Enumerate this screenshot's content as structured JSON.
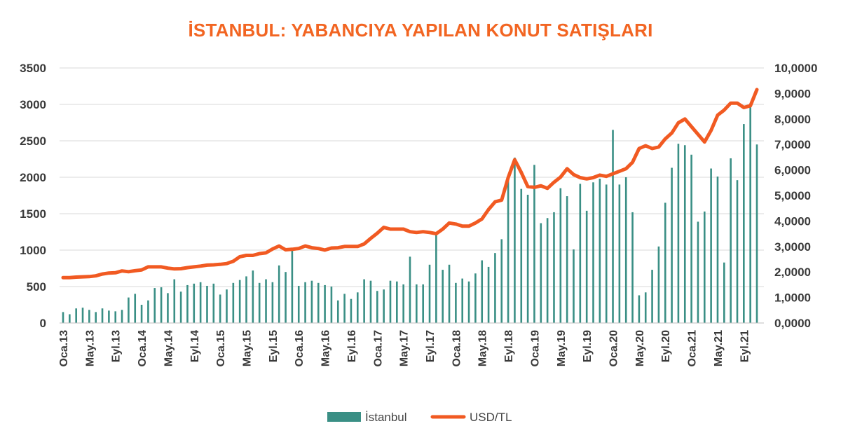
{
  "chart_data": {
    "type": "bar+line",
    "title": "İSTANBUL: YABANCIYA YAPILAN KONUT SATIŞLARI",
    "x_tick_labels": [
      "Oca.13",
      "May.13",
      "Eyl.13",
      "Oca.14",
      "May.14",
      "Eyl.14",
      "Oca.15",
      "May.15",
      "Eyl.15",
      "Oca.16",
      "May.16",
      "Eyl.16",
      "Oca.17",
      "May.17",
      "Eyl.17",
      "Oca.18",
      "May.18",
      "Eyl.18",
      "Oca.19",
      "May.19",
      "Eyl.19",
      "Oca.20",
      "May.20",
      "Eyl.20",
      "Oca.21",
      "May.21",
      "Eyl.21"
    ],
    "left_axis": {
      "ylim": [
        0,
        3500
      ],
      "ticks": [
        "0",
        "500",
        "1000",
        "1500",
        "2000",
        "2500",
        "3000",
        "3500"
      ]
    },
    "right_axis": {
      "ylim": [
        0,
        10
      ],
      "ticks": [
        "0,0000",
        "1,0000",
        "2,0000",
        "3,0000",
        "4,0000",
        "5,0000",
        "6,0000",
        "7,0000",
        "8,0000",
        "9,0000",
        "10,0000"
      ]
    },
    "grid": "horizontal",
    "legend_position": "bottom",
    "colors": {
      "bars": "#3a8f85",
      "line": "#f15a22",
      "title": "#f26522"
    },
    "series": [
      {
        "name": "İstanbul",
        "kind": "bar",
        "axis": "left",
        "values": [
          150,
          120,
          200,
          210,
          180,
          150,
          200,
          170,
          160,
          180,
          350,
          400,
          250,
          310,
          480,
          490,
          410,
          600,
          430,
          520,
          540,
          560,
          510,
          540,
          390,
          460,
          550,
          590,
          640,
          720,
          550,
          600,
          560,
          790,
          700,
          1000,
          510,
          560,
          580,
          550,
          520,
          500,
          310,
          400,
          330,
          420,
          600,
          580,
          440,
          460,
          580,
          570,
          530,
          910,
          530,
          530,
          800,
          1230,
          730,
          800,
          550,
          610,
          570,
          680,
          860,
          770,
          960,
          1150,
          2020,
          2270,
          1840,
          1760,
          2170,
          1370,
          1440,
          1520,
          1850,
          1740,
          1010,
          1910,
          1540,
          1930,
          1980,
          1900,
          2650,
          1900,
          2000,
          1520,
          380,
          420,
          730,
          1050,
          1650,
          2130,
          2460,
          2440,
          2310,
          1390,
          1530,
          2120,
          2010,
          830,
          2260,
          1960,
          2730,
          3000,
          2450
        ]
      },
      {
        "name": "USD/TL",
        "kind": "line",
        "axis": "right",
        "values": [
          1.78,
          1.78,
          1.8,
          1.81,
          1.82,
          1.85,
          1.92,
          1.96,
          1.97,
          2.04,
          2.01,
          2.05,
          2.08,
          2.2,
          2.2,
          2.2,
          2.15,
          2.12,
          2.13,
          2.17,
          2.2,
          2.23,
          2.27,
          2.28,
          2.3,
          2.33,
          2.42,
          2.6,
          2.65,
          2.65,
          2.72,
          2.75,
          2.9,
          3.02,
          2.87,
          2.89,
          2.92,
          3.02,
          2.95,
          2.92,
          2.86,
          2.94,
          2.95,
          3.0,
          3.0,
          3.0,
          3.1,
          3.32,
          3.52,
          3.75,
          3.68,
          3.68,
          3.68,
          3.58,
          3.55,
          3.58,
          3.55,
          3.5,
          3.68,
          3.92,
          3.88,
          3.8,
          3.8,
          3.92,
          4.08,
          4.45,
          4.75,
          4.82,
          5.7,
          6.4,
          5.9,
          5.35,
          5.32,
          5.38,
          5.28,
          5.52,
          5.72,
          6.05,
          5.82,
          5.7,
          5.65,
          5.7,
          5.8,
          5.75,
          5.85,
          5.95,
          6.05,
          6.3,
          6.84,
          6.95,
          6.84,
          6.9,
          7.22,
          7.45,
          7.85,
          8.0,
          7.7,
          7.4,
          7.1,
          7.55,
          8.15,
          8.35,
          8.62,
          8.62,
          8.45,
          8.52,
          9.15
        ]
      }
    ]
  }
}
